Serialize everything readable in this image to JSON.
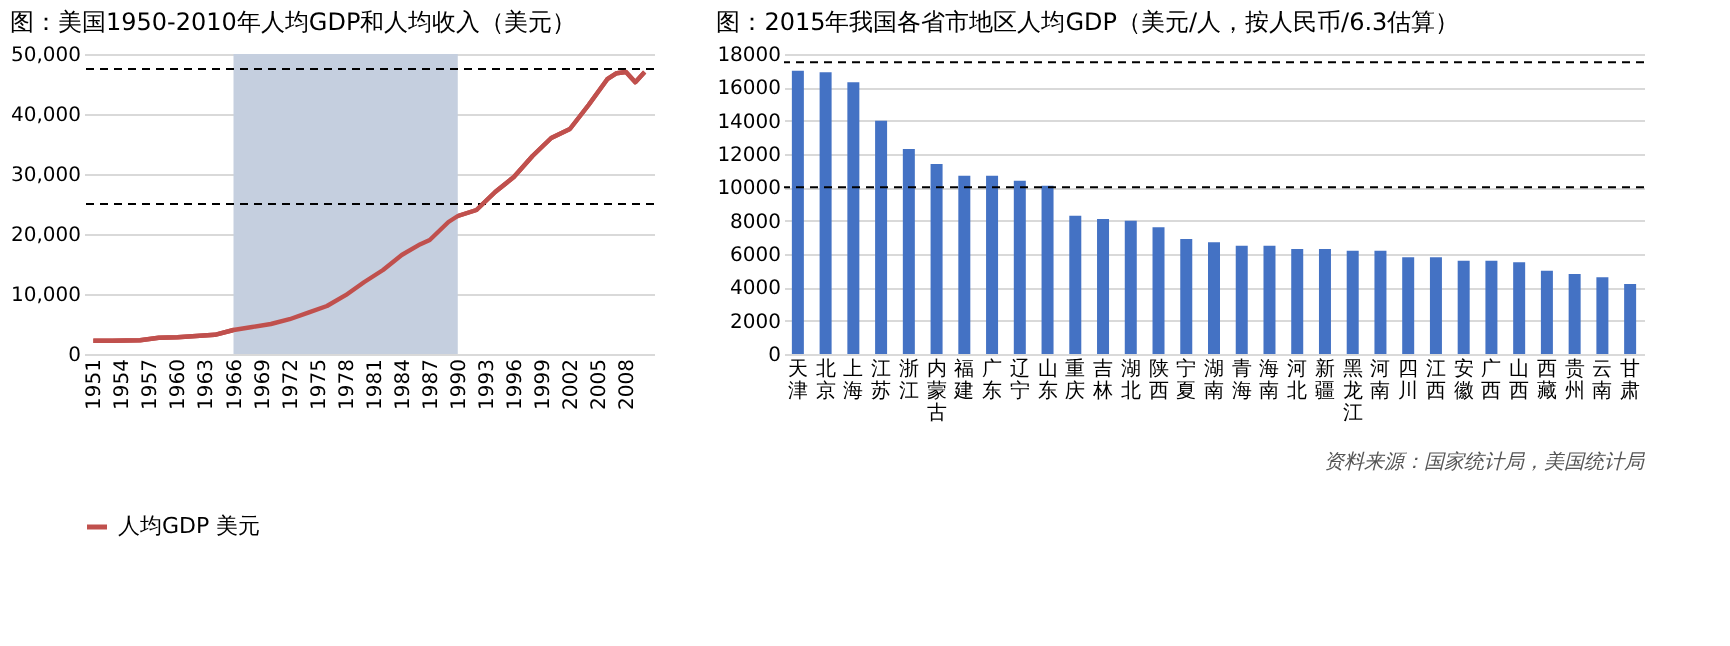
{
  "chart_data": [
    {
      "type": "line",
      "title": "图：美国1950-2010年人均GDP和人均收入（美元）",
      "x": [
        1951,
        1953,
        1956,
        1958,
        1960,
        1962,
        1964,
        1966,
        1968,
        1970,
        1972,
        1974,
        1976,
        1978,
        1980,
        1982,
        1984,
        1986,
        1987,
        1989,
        1990,
        1992,
        1994,
        1996,
        1998,
        2000,
        2002,
        2004,
        2006,
        2007,
        2008,
        2009,
        2010
      ],
      "series": [
        {
          "name": "人均GDP 美元",
          "color": "#c0504d",
          "values": [
            2200,
            2200,
            2300,
            2700,
            2800,
            3000,
            3200,
            4000,
            4500,
            5000,
            5800,
            6900,
            8000,
            9800,
            12000,
            14000,
            16500,
            18300,
            19000,
            22000,
            23000,
            24000,
            27000,
            29500,
            33000,
            36000,
            37500,
            41500,
            45800,
            46800,
            47000,
            45300,
            47000
          ]
        }
      ],
      "xlim": [
        1950,
        2011
      ],
      "xticks": [
        1951,
        1954,
        1957,
        1960,
        1963,
        1966,
        1969,
        1972,
        1975,
        1978,
        1981,
        1984,
        1987,
        1990,
        1993,
        1996,
        1999,
        2002,
        2005,
        2008
      ],
      "ylim": [
        0,
        50000
      ],
      "yticks": [
        {
          "value": 0,
          "label": "0"
        },
        {
          "value": 10000,
          "label": "10,000"
        },
        {
          "value": 20000,
          "label": "20,000"
        },
        {
          "value": 30000,
          "label": "30,000"
        },
        {
          "value": 40000,
          "label": "40,000"
        },
        {
          "value": 50000,
          "label": "50,000"
        }
      ],
      "bands": [
        {
          "axis": "x",
          "from": 1966,
          "to": 1990,
          "color": "#c5cfdf"
        }
      ],
      "ref_lines": [
        {
          "axis": "y",
          "value": 25000,
          "color": "#000000",
          "line_style": "dashed"
        },
        {
          "axis": "y",
          "value": 47500,
          "color": "#000000",
          "line_style": "dashed"
        }
      ],
      "grid": "y",
      "legend": "bottom",
      "line_style": "solid",
      "marker": "none"
    },
    {
      "type": "bar",
      "title": "图：2015年我国各省市地区人均GDP（美元/人，按人民币/6.3估算）",
      "categories": [
        "天津",
        "北京",
        "上海",
        "江苏",
        "浙江",
        "内蒙古",
        "福建",
        "广东",
        "辽宁",
        "山东",
        "重庆",
        "吉林",
        "湖北",
        "陕西",
        "宁夏",
        "湖南",
        "青海",
        "海南",
        "河北",
        "新疆",
        "黑龙江",
        "河南",
        "四川",
        "江西",
        "安徽",
        "广西",
        "山西",
        "西藏",
        "贵州",
        "云南",
        "甘肃"
      ],
      "values": [
        17000,
        16900,
        16300,
        14000,
        12300,
        11400,
        10700,
        10700,
        10400,
        10100,
        8300,
        8100,
        8000,
        7600,
        6900,
        6700,
        6500,
        6500,
        6300,
        6300,
        6200,
        6200,
        5800,
        5800,
        5600,
        5600,
        5500,
        5000,
        4800,
        4600,
        4200
      ],
      "color": "#4472c4",
      "ylim": [
        0,
        18000
      ],
      "yticks": [
        {
          "value": 0,
          "label": "0"
        },
        {
          "value": 2000,
          "label": "2000"
        },
        {
          "value": 4000,
          "label": "4000"
        },
        {
          "value": 6000,
          "label": "6000"
        },
        {
          "value": 8000,
          "label": "8000"
        },
        {
          "value": 10000,
          "label": "10000"
        },
        {
          "value": 12000,
          "label": "12000"
        },
        {
          "value": 14000,
          "label": "14000"
        },
        {
          "value": 16000,
          "label": "16000"
        },
        {
          "value": 18000,
          "label": "18000"
        }
      ],
      "ref_lines": [
        {
          "axis": "y",
          "value": 10000,
          "color": "#000000",
          "line_style": "dashed"
        },
        {
          "axis": "y",
          "value": 17500,
          "color": "#000000",
          "line_style": "dashed"
        }
      ],
      "grid": "y",
      "annotations": [
        "资料来源：国家统计局，美国统计局"
      ]
    }
  ]
}
